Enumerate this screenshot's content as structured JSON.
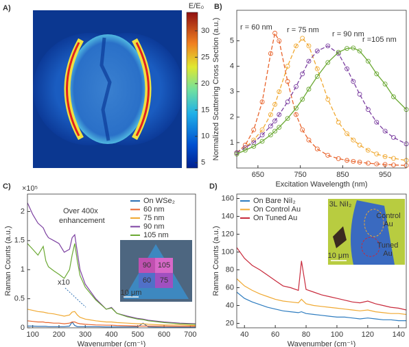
{
  "chart_data": [
    {
      "type": "heatmap",
      "panel_label": "A)",
      "colorbar_label": "E/E₀",
      "clim": [
        4,
        33.5
      ],
      "cticks": [
        5,
        10,
        15,
        20,
        25,
        30
      ]
    },
    {
      "type": "line",
      "panel_label": "B)",
      "xlabel": "Excitation Wavelength (nm)",
      "ylabel": "Normalized Scattering Cross Section (a.u.)",
      "x": [
        600,
        620,
        640,
        660,
        680,
        690,
        700,
        720,
        740,
        755,
        770,
        790,
        815,
        840,
        860,
        875,
        890,
        910,
        930,
        950,
        970,
        1000
      ],
      "series": [
        {
          "name": "r = 60 nm",
          "color": "#e8622a",
          "dashed": true,
          "values": [
            0.6,
            0.9,
            1.5,
            2.6,
            4.5,
            5.3,
            5.0,
            3.4,
            2.1,
            1.5,
            1.1,
            0.75,
            0.5,
            0.37,
            0.3,
            0.26,
            0.23,
            0.19,
            0.16,
            0.14,
            0.12,
            0.1
          ]
        },
        {
          "name": "r = 75 nm",
          "color": "#f0a830",
          "dashed": true,
          "values": [
            0.6,
            0.8,
            1.1,
            1.5,
            2.1,
            2.5,
            3.0,
            4.0,
            4.8,
            5.1,
            4.8,
            3.9,
            2.7,
            1.8,
            1.35,
            1.1,
            0.9,
            0.7,
            0.55,
            0.45,
            0.38,
            0.3
          ]
        },
        {
          "name": "r = 90 nm",
          "color": "#7b3fa0",
          "dashed": true,
          "values": [
            0.6,
            0.8,
            1.0,
            1.3,
            1.65,
            1.85,
            2.1,
            2.6,
            3.2,
            3.7,
            4.2,
            4.6,
            4.8,
            4.5,
            3.9,
            3.4,
            2.9,
            2.3,
            1.8,
            1.45,
            1.2,
            0.95
          ]
        },
        {
          "name": "r =105 nm",
          "color": "#6aa832",
          "dashed": false,
          "values": [
            0.55,
            0.7,
            0.85,
            1.05,
            1.3,
            1.45,
            1.6,
            1.95,
            2.35,
            2.7,
            3.1,
            3.6,
            4.15,
            4.55,
            4.7,
            4.72,
            4.6,
            4.2,
            3.7,
            3.3,
            2.8,
            2.3
          ]
        }
      ],
      "markers": true,
      "xlim": [
        600,
        1000
      ],
      "ylim": [
        0,
        6.2
      ],
      "xticks": [
        650,
        750,
        850,
        950
      ],
      "yticks": [
        1,
        2,
        3,
        4,
        5
      ]
    },
    {
      "type": "line",
      "panel_label": "C)",
      "xlabel": "Wavenumber (cm⁻¹)",
      "ylabel": "Raman Counts (a.u.)",
      "scale_label": "×10⁵",
      "x": [
        80,
        100,
        120,
        140,
        150,
        160,
        180,
        200,
        220,
        240,
        250,
        260,
        270,
        280,
        300,
        340,
        380,
        400,
        420,
        460,
        500,
        520,
        540,
        600,
        660,
        720
      ],
      "series": [
        {
          "name": "On WSe₂",
          "color": "#2c6fb3",
          "values": [
            0.03,
            0.03,
            0.025,
            0.025,
            0.025,
            0.02,
            0.02,
            0.02,
            0.02,
            0.03,
            0.1,
            0.04,
            0.02,
            0.02,
            0.02,
            0.02,
            0.015,
            0.015,
            0.015,
            0.015,
            0.015,
            0.08,
            0.015,
            0.01,
            0.01,
            0.01
          ]
        },
        {
          "name": "60 nm",
          "color": "#e8622a",
          "values": [
            0.12,
            0.11,
            0.1,
            0.1,
            0.09,
            0.09,
            0.08,
            0.08,
            0.07,
            0.08,
            0.1,
            0.1,
            0.08,
            0.07,
            0.06,
            0.05,
            0.045,
            0.045,
            0.04,
            0.035,
            0.03,
            0.03,
            0.03,
            0.03,
            0.025,
            0.025
          ]
        },
        {
          "name": "75 nm",
          "color": "#f0a830",
          "values": [
            0.32,
            0.3,
            0.28,
            0.27,
            0.26,
            0.25,
            0.24,
            0.22,
            0.2,
            0.22,
            0.27,
            0.28,
            0.22,
            0.18,
            0.15,
            0.12,
            0.1,
            0.1,
            0.09,
            0.08,
            0.07,
            0.07,
            0.06,
            0.05,
            0.05,
            0.04
          ]
        },
        {
          "name": "90 nm",
          "color": "#7b3fa0",
          "values": [
            2.15,
            1.95,
            1.8,
            1.72,
            1.62,
            1.55,
            1.5,
            1.45,
            1.3,
            1.35,
            1.55,
            1.6,
            1.3,
            1.0,
            0.75,
            0.5,
            0.32,
            0.35,
            0.25,
            0.2,
            0.16,
            0.15,
            0.13,
            0.1,
            0.08,
            0.07
          ]
        },
        {
          "name": "105 nm",
          "color": "#6aa832",
          "values": [
            1.45,
            1.35,
            1.25,
            1.4,
            1.15,
            1.05,
            0.98,
            0.92,
            0.85,
            1.0,
            1.25,
            1.45,
            1.15,
            0.9,
            0.7,
            0.48,
            0.32,
            0.34,
            0.25,
            0.19,
            0.15,
            0.14,
            0.12,
            0.09,
            0.07,
            0.06
          ]
        }
      ],
      "legend": "upper right",
      "xlim": [
        80,
        720
      ],
      "ylim": [
        0,
        2.3
      ],
      "xticks": [
        100,
        200,
        300,
        400,
        500,
        600,
        700
      ],
      "yticks": [
        0,
        0.5,
        1,
        1.5,
        2
      ],
      "annotations": [
        "Over 400x",
        "enhancement",
        "x10"
      ],
      "inset_labels": [
        "90",
        "105",
        "60",
        "75",
        "10 μm"
      ]
    },
    {
      "type": "line",
      "panel_label": "D)",
      "xlabel": "Wavenumber (cm⁻¹)",
      "ylabel": "Raman Counts (a.u.)",
      "x": [
        35,
        40,
        45,
        50,
        55,
        60,
        65,
        70,
        75,
        77,
        80,
        85,
        90,
        95,
        100,
        105,
        110,
        115,
        120,
        125,
        130,
        135,
        140,
        145
      ],
      "series": [
        {
          "name": "On Bare NiI₂",
          "color": "#2c7bbf",
          "values": [
            55,
            48,
            44,
            41,
            38,
            36,
            34,
            33,
            32,
            33,
            31,
            30,
            29,
            28,
            27,
            27,
            26,
            25,
            26,
            25,
            24,
            24,
            23,
            23
          ]
        },
        {
          "name": "On Control Au",
          "color": "#f0a830",
          "values": [
            70,
            62,
            57,
            53,
            50,
            47,
            45,
            44,
            43,
            47,
            42,
            40,
            39,
            38,
            37,
            36,
            35,
            34,
            35,
            33,
            32,
            31,
            31,
            30
          ]
        },
        {
          "name": "On Tuned Au",
          "color": "#c8283a",
          "values": [
            105,
            93,
            85,
            80,
            74,
            68,
            62,
            60,
            57,
            90,
            58,
            55,
            52,
            50,
            48,
            46,
            44,
            43,
            45,
            42,
            40,
            38,
            37,
            35
          ]
        }
      ],
      "legend": "upper left",
      "xlim": [
        35,
        145
      ],
      "ylim": [
        15,
        165
      ],
      "xticks": [
        40,
        60,
        80,
        100,
        120,
        140
      ],
      "yticks": [
        20,
        40,
        60,
        80,
        100,
        120,
        140,
        160
      ],
      "inset_labels": [
        "3L NiI₂",
        "Control",
        "Au",
        "Tuned",
        "Au",
        "10 μm"
      ]
    }
  ]
}
